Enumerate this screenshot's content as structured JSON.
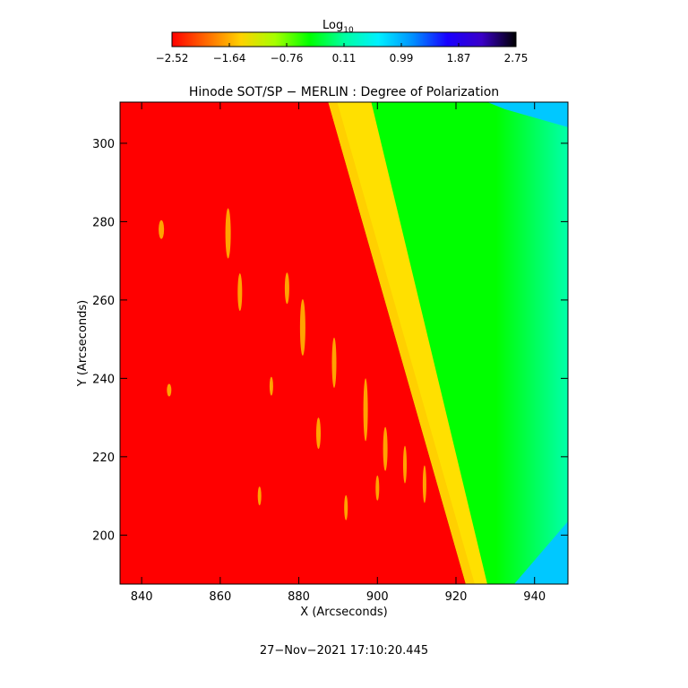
{
  "colorbar": {
    "label": "Log",
    "label_sub": "10",
    "range": [
      -2.52,
      2.75
    ],
    "tick_labels": [
      "−2.52",
      "−1.64",
      "−0.76",
      "0.11",
      "0.99",
      "1.87",
      "2.75"
    ],
    "stops": [
      "#ff0000",
      "#ff6a00",
      "#ffd200",
      "#a6ff00",
      "#00ff00",
      "#00ffa0",
      "#00f0ff",
      "#0090ff",
      "#1800ff",
      "#3a00c8",
      "#000000"
    ]
  },
  "chart_data": {
    "type": "heatmap",
    "title": "Hinode SOT/SP − MERLIN : Degree of Polarization",
    "xlabel": "X (Arcseconds)",
    "ylabel": "Y (Arcseconds)",
    "xlim": [
      834.5,
      948.5
    ],
    "ylim": [
      187.5,
      310.5
    ],
    "xticks": [
      840,
      860,
      880,
      900,
      920,
      940
    ],
    "yticks": [
      200,
      220,
      240,
      260,
      280,
      300
    ],
    "limb": {
      "top_x": 887.5,
      "bottom_x": 922.5
    },
    "colors": {
      "disk": "#ff0000",
      "limb_band": "#ffe000",
      "limb_edge": "#ffd000",
      "off_limb_inner": "#bcf000",
      "off_limb": "#00ff00",
      "corona_far": "#00ffaa",
      "corner": "#00c8ff",
      "features": "#ffc000"
    }
  },
  "footer": {
    "timestamp": "27−Nov−2021 17:10:20.445"
  }
}
